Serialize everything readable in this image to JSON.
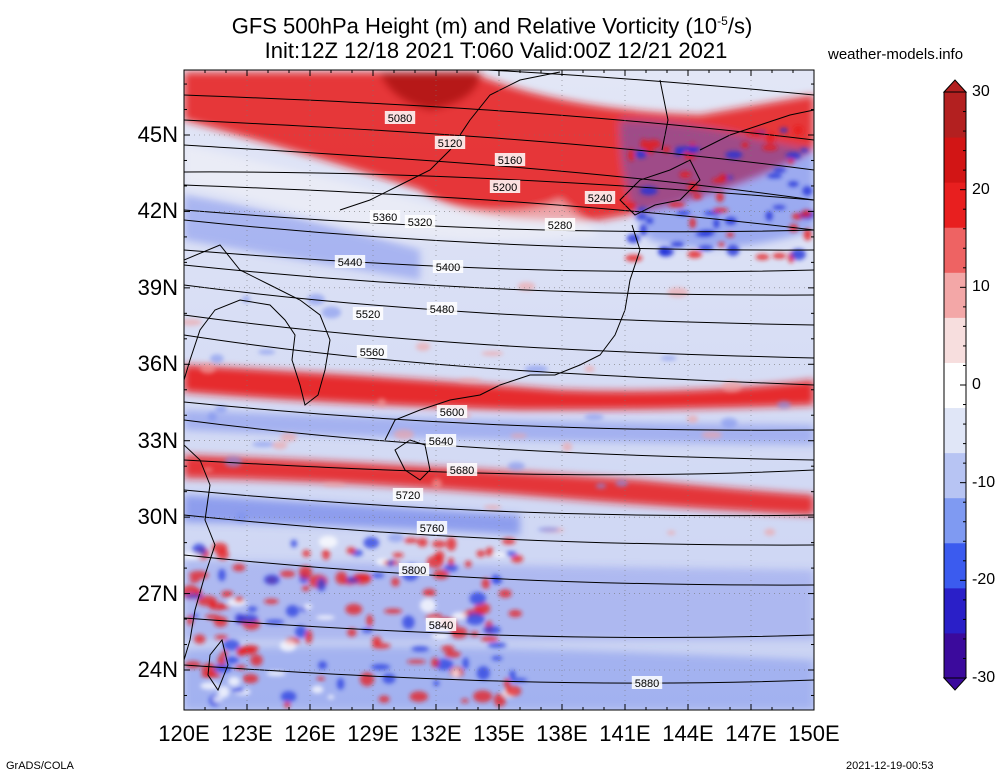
{
  "title_line1": "GFS 500hPa Height (m) and Relative Vorticity (10",
  "title_sup": "-5",
  "title_line1_end": "/s)",
  "title_line2": "Init:12Z 12/18 2021 T:060 Valid:00Z 12/21 2021",
  "site": "weather-models.info",
  "lat_labels": [
    "45N",
    "42N",
    "39N",
    "36N",
    "33N",
    "30N",
    "27N",
    "24N"
  ],
  "lon_labels": [
    "120E",
    "123E",
    "126E",
    "129E",
    "132E",
    "135E",
    "138E",
    "141E",
    "144E",
    "147E",
    "150E"
  ],
  "colorbar": {
    "ticks": [
      "30",
      "20",
      "10",
      "0",
      "-10",
      "-20",
      "-30"
    ],
    "colors": [
      "#3b0a9c",
      "#2a1fc8",
      "#3b5bef",
      "#7f9af2",
      "#b7c4f3",
      "#e0e6f7",
      "#ffffff",
      "#f7dede",
      "#f3a7a7",
      "#ee6363",
      "#e81f1f",
      "#d21515",
      "#b32020"
    ]
  },
  "contour_labels": [
    "5080",
    "5120",
    "5160",
    "5200",
    "5240",
    "5280",
    "5320",
    "5360",
    "5400",
    "5440",
    "5480",
    "5520",
    "5560",
    "5600",
    "5640",
    "5680",
    "5720",
    "5760",
    "5800",
    "5840",
    "5880"
  ],
  "bands": {
    "positive": "#e81818",
    "negative": "#4a63e8",
    "neutral": "#f3f3f6"
  },
  "footer_left": "GrADS/COLA",
  "footer_right": "2021-12-19-00:53"
}
